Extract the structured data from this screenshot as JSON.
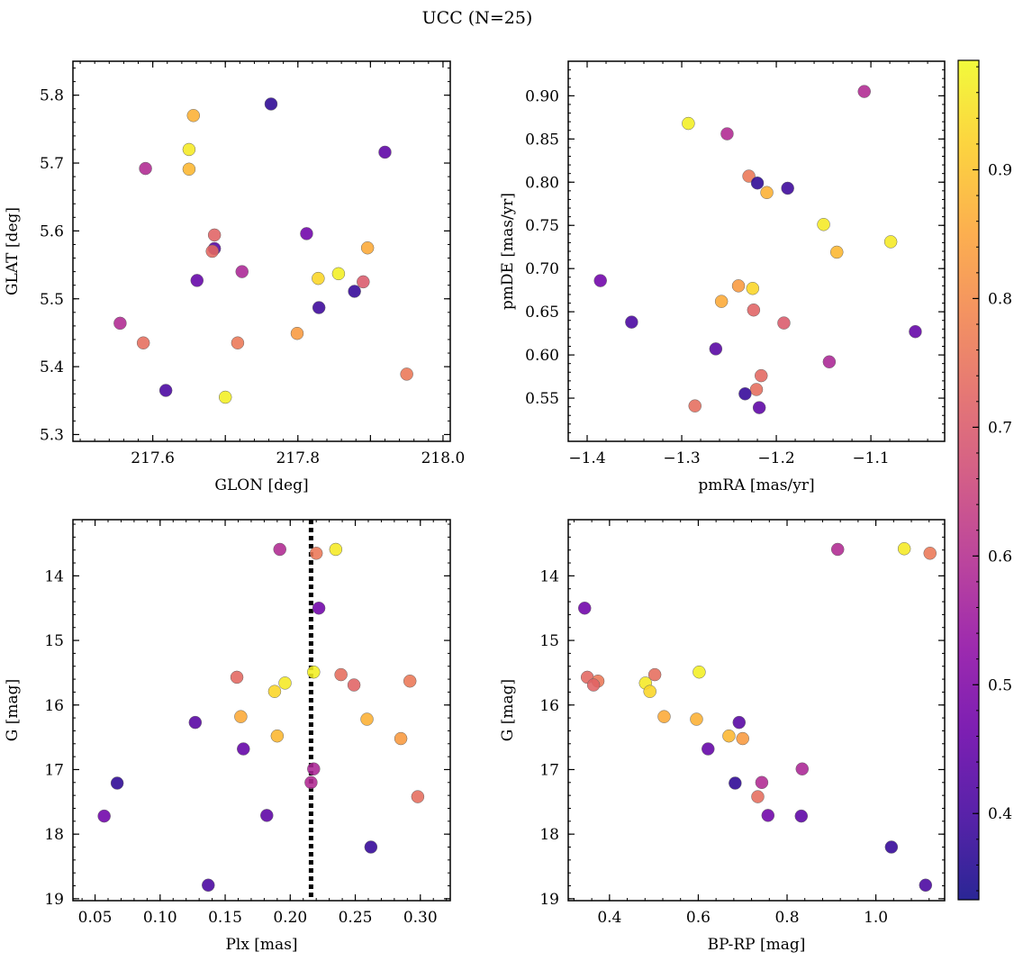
{
  "figure": {
    "title": "UCC (N=25)"
  },
  "chart_data": [
    {
      "type": "scatter",
      "xlabel": "GLON [deg]",
      "ylabel": "GLAT [deg]",
      "xlim": [
        217.49,
        218.01
      ],
      "ylim": [
        5.29,
        5.85
      ],
      "y_inverted": false,
      "xticks": [
        "217.6",
        "217.7",
        "217.8",
        "217.9",
        "218.0"
      ],
      "xtick_labels": [
        "217.6",
        "217.8",
        "218.0"
      ],
      "yticks": [
        "5.3",
        "5.4",
        "5.5",
        "5.6",
        "5.7",
        "5.8"
      ],
      "points": [
        {
          "x": 217.763,
          "y": 5.787,
          "c": 0.37
        },
        {
          "x": 217.656,
          "y": 5.77,
          "c": 0.87
        },
        {
          "x": 217.65,
          "y": 5.72,
          "c": 0.96
        },
        {
          "x": 217.92,
          "y": 5.716,
          "c": 0.44
        },
        {
          "x": 217.59,
          "y": 5.692,
          "c": 0.59
        },
        {
          "x": 217.65,
          "y": 5.691,
          "c": 0.88
        },
        {
          "x": 217.812,
          "y": 5.596,
          "c": 0.47
        },
        {
          "x": 217.685,
          "y": 5.594,
          "c": 0.72
        },
        {
          "x": 217.685,
          "y": 5.574,
          "c": 0.43
        },
        {
          "x": 217.896,
          "y": 5.575,
          "c": 0.86
        },
        {
          "x": 217.682,
          "y": 5.57,
          "c": 0.73
        },
        {
          "x": 217.723,
          "y": 5.54,
          "c": 0.58
        },
        {
          "x": 217.856,
          "y": 5.537,
          "c": 0.97
        },
        {
          "x": 217.828,
          "y": 5.53,
          "c": 0.93
        },
        {
          "x": 217.661,
          "y": 5.527,
          "c": 0.45
        },
        {
          "x": 217.89,
          "y": 5.525,
          "c": 0.7
        },
        {
          "x": 217.878,
          "y": 5.511,
          "c": 0.38
        },
        {
          "x": 217.829,
          "y": 5.487,
          "c": 0.39
        },
        {
          "x": 217.555,
          "y": 5.464,
          "c": 0.59
        },
        {
          "x": 217.799,
          "y": 5.449,
          "c": 0.83
        },
        {
          "x": 217.587,
          "y": 5.435,
          "c": 0.74
        },
        {
          "x": 217.717,
          "y": 5.435,
          "c": 0.76
        },
        {
          "x": 217.95,
          "y": 5.389,
          "c": 0.76
        },
        {
          "x": 217.618,
          "y": 5.365,
          "c": 0.41
        },
        {
          "x": 217.7,
          "y": 5.355,
          "c": 0.97
        }
      ]
    },
    {
      "type": "scatter",
      "xlabel": "pmRA [mas/yr]",
      "ylabel": "pmDE [mas/yr]",
      "xlim": [
        -1.42,
        -1.022
      ],
      "ylim": [
        0.5,
        0.94
      ],
      "y_inverted": false,
      "xticks": [
        "−1.4",
        "−1.3",
        "−1.2",
        "−1.1"
      ],
      "xtick_labels": [
        "−1.4",
        "−1.3",
        "−1.2",
        "−1.1"
      ],
      "yticks": [
        "0.55",
        "0.60",
        "0.65",
        "0.70",
        "0.75",
        "0.80",
        "0.85",
        "0.90"
      ],
      "points": [
        {
          "x": -1.107,
          "y": 0.905,
          "c": 0.59
        },
        {
          "x": -1.293,
          "y": 0.868,
          "c": 0.97
        },
        {
          "x": -1.252,
          "y": 0.856,
          "c": 0.59
        },
        {
          "x": -1.229,
          "y": 0.807,
          "c": 0.76
        },
        {
          "x": -1.22,
          "y": 0.799,
          "c": 0.37
        },
        {
          "x": -1.188,
          "y": 0.793,
          "c": 0.39
        },
        {
          "x": -1.21,
          "y": 0.788,
          "c": 0.87
        },
        {
          "x": -1.15,
          "y": 0.751,
          "c": 0.96
        },
        {
          "x": -1.079,
          "y": 0.731,
          "c": 0.96
        },
        {
          "x": -1.136,
          "y": 0.719,
          "c": 0.88
        },
        {
          "x": -1.386,
          "y": 0.686,
          "c": 0.47
        },
        {
          "x": -1.24,
          "y": 0.68,
          "c": 0.83
        },
        {
          "x": -1.225,
          "y": 0.677,
          "c": 0.93
        },
        {
          "x": -1.258,
          "y": 0.662,
          "c": 0.86
        },
        {
          "x": -1.224,
          "y": 0.652,
          "c": 0.72
        },
        {
          "x": -1.353,
          "y": 0.638,
          "c": 0.41
        },
        {
          "x": -1.192,
          "y": 0.637,
          "c": 0.7
        },
        {
          "x": -1.053,
          "y": 0.627,
          "c": 0.45
        },
        {
          "x": -1.264,
          "y": 0.607,
          "c": 0.43
        },
        {
          "x": -1.144,
          "y": 0.592,
          "c": 0.58
        },
        {
          "x": -1.216,
          "y": 0.576,
          "c": 0.73
        },
        {
          "x": -1.221,
          "y": 0.56,
          "c": 0.74
        },
        {
          "x": -1.233,
          "y": 0.555,
          "c": 0.38
        },
        {
          "x": -1.286,
          "y": 0.541,
          "c": 0.74
        },
        {
          "x": -1.218,
          "y": 0.539,
          "c": 0.44
        }
      ]
    },
    {
      "type": "scatter",
      "xlabel": "Plx [mas]",
      "ylabel": "G [mag]",
      "xlim": [
        0.033,
        0.323
      ],
      "ylim": [
        13.13,
        19.03
      ],
      "y_inverted": true,
      "vline": {
        "x": 0.216,
        "style": "dotted",
        "color": "#000000"
      },
      "xticks": [
        "0.05",
        "0.10",
        "0.15",
        "0.20",
        "0.25",
        "0.30"
      ],
      "xtick_labels": [
        "0.05",
        "0.10",
        "0.15",
        "0.20",
        "0.25",
        "0.30"
      ],
      "yticks": [
        "14",
        "15",
        "16",
        "17",
        "18",
        "19"
      ],
      "points": [
        {
          "x": 0.192,
          "y": 13.59,
          "c": 0.59
        },
        {
          "x": 0.235,
          "y": 13.59,
          "c": 0.96
        },
        {
          "x": 0.22,
          "y": 13.65,
          "c": 0.76
        },
        {
          "x": 0.222,
          "y": 14.5,
          "c": 0.47
        },
        {
          "x": 0.218,
          "y": 15.49,
          "c": 0.97
        },
        {
          "x": 0.239,
          "y": 15.53,
          "c": 0.74
        },
        {
          "x": 0.159,
          "y": 15.57,
          "c": 0.73
        },
        {
          "x": 0.292,
          "y": 15.63,
          "c": 0.76
        },
        {
          "x": 0.196,
          "y": 15.66,
          "c": 0.96
        },
        {
          "x": 0.249,
          "y": 15.69,
          "c": 0.72
        },
        {
          "x": 0.188,
          "y": 15.79,
          "c": 0.93
        },
        {
          "x": 0.162,
          "y": 16.18,
          "c": 0.86
        },
        {
          "x": 0.259,
          "y": 16.22,
          "c": 0.87
        },
        {
          "x": 0.127,
          "y": 16.27,
          "c": 0.43
        },
        {
          "x": 0.19,
          "y": 16.48,
          "c": 0.88
        },
        {
          "x": 0.285,
          "y": 16.52,
          "c": 0.83
        },
        {
          "x": 0.164,
          "y": 16.68,
          "c": 0.45
        },
        {
          "x": 0.218,
          "y": 16.99,
          "c": 0.58
        },
        {
          "x": 0.067,
          "y": 17.21,
          "c": 0.37
        },
        {
          "x": 0.216,
          "y": 17.2,
          "c": 0.59
        },
        {
          "x": 0.298,
          "y": 17.42,
          "c": 0.74
        },
        {
          "x": 0.057,
          "y": 17.72,
          "c": 0.47
        },
        {
          "x": 0.182,
          "y": 17.71,
          "c": 0.44
        },
        {
          "x": 0.262,
          "y": 18.2,
          "c": 0.38
        },
        {
          "x": 0.137,
          "y": 18.79,
          "c": 0.41
        }
      ]
    },
    {
      "type": "scatter",
      "xlabel": "BP-RP [mag]",
      "ylabel": "G [mag]",
      "xlim": [
        0.307,
        1.155
      ],
      "ylim": [
        13.13,
        19.03
      ],
      "y_inverted": true,
      "xticks": [
        "0.4",
        "0.6",
        "0.8",
        "1.0"
      ],
      "xtick_labels": [
        "0.4",
        "0.6",
        "0.8",
        "1.0"
      ],
      "yticks": [
        "14",
        "15",
        "16",
        "17",
        "18",
        "19"
      ],
      "points": [
        {
          "x": 0.914,
          "y": 13.59,
          "c": 0.59
        },
        {
          "x": 1.064,
          "y": 13.58,
          "c": 0.96
        },
        {
          "x": 1.122,
          "y": 13.65,
          "c": 0.76
        },
        {
          "x": 0.344,
          "y": 14.5,
          "c": 0.47
        },
        {
          "x": 0.602,
          "y": 15.49,
          "c": 0.97
        },
        {
          "x": 0.502,
          "y": 15.53,
          "c": 0.74
        },
        {
          "x": 0.35,
          "y": 15.57,
          "c": 0.73
        },
        {
          "x": 0.374,
          "y": 15.63,
          "c": 0.76
        },
        {
          "x": 0.481,
          "y": 15.66,
          "c": 0.96
        },
        {
          "x": 0.364,
          "y": 15.69,
          "c": 0.72
        },
        {
          "x": 0.491,
          "y": 15.79,
          "c": 0.93
        },
        {
          "x": 0.523,
          "y": 16.18,
          "c": 0.86
        },
        {
          "x": 0.596,
          "y": 16.22,
          "c": 0.87
        },
        {
          "x": 0.692,
          "y": 16.27,
          "c": 0.43
        },
        {
          "x": 0.669,
          "y": 16.48,
          "c": 0.88
        },
        {
          "x": 0.7,
          "y": 16.52,
          "c": 0.83
        },
        {
          "x": 0.622,
          "y": 16.68,
          "c": 0.45
        },
        {
          "x": 0.834,
          "y": 16.99,
          "c": 0.58
        },
        {
          "x": 0.683,
          "y": 17.21,
          "c": 0.37
        },
        {
          "x": 0.743,
          "y": 17.2,
          "c": 0.59
        },
        {
          "x": 0.734,
          "y": 17.42,
          "c": 0.74
        },
        {
          "x": 0.757,
          "y": 17.71,
          "c": 0.47
        },
        {
          "x": 0.832,
          "y": 17.72,
          "c": 0.44
        },
        {
          "x": 1.035,
          "y": 18.2,
          "c": 0.38
        },
        {
          "x": 1.112,
          "y": 18.79,
          "c": 0.41
        }
      ]
    }
  ],
  "colorbar": {
    "colormap": "plasma",
    "range": [
      0.333,
      0.985
    ],
    "ticks": [
      "0.4",
      "0.5",
      "0.6",
      "0.7",
      "0.8",
      "0.9"
    ]
  }
}
